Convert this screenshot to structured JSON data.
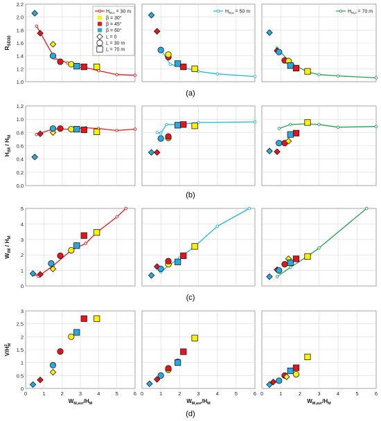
{
  "figure": {
    "captions": [
      "(a)",
      "(b)",
      "(c)",
      "(d)"
    ],
    "column_series": [
      "H<sub>M,o</sub> = 30 m",
      "H<sub>M,o</sub> = 50 m",
      "H<sub>M,o</sub> = 70 m"
    ],
    "legend": {
      "line_label": "H",
      "line_sub": "M,o",
      "line_tail": " = 30 m",
      "col2_line": [
        "H",
        "M,o",
        " = 50 m"
      ],
      "col3_line": [
        "H",
        "M,o",
        " = 70 m"
      ],
      "beta_30": "β = 30°",
      "beta_45": "β = 45°",
      "beta_60": "β = 60°",
      "L0": "L = 0",
      "L30": "L = 30 m",
      "L70": "L = 70 m"
    },
    "colors": {
      "col1": "#e8141b",
      "col2": "#1db5e6",
      "col3": "#22a04a",
      "beta30": "#fff200",
      "beta45": "#e8141b",
      "beta60": "#27aae1",
      "grid": "#d9d9d9"
    }
  },
  "chart_data": [
    {
      "row": "a",
      "type": "scatter",
      "ylabel_main": "R",
      "ylabel_sub": "SD30",
      "ylim": [
        1.0,
        2.2
      ],
      "yticks": [
        "1.0",
        "1.2",
        "1.4",
        "1.6",
        "1.8",
        "2.0",
        "2.2"
      ],
      "xlim": [
        0,
        6
      ],
      "xticks": [],
      "lines": [
        [
          [
            0.6,
            1.86
          ],
          [
            0.8,
            1.76
          ],
          [
            1.6,
            1.36
          ],
          [
            2.3,
            1.29
          ],
          [
            3.0,
            1.24
          ],
          [
            4.0,
            1.17
          ],
          [
            5.0,
            1.11
          ],
          [
            6.0,
            1.1
          ]
        ],
        [
          [
            1.0,
            1.5
          ],
          [
            1.5,
            1.27
          ],
          [
            2.2,
            1.22
          ],
          [
            3.0,
            1.16
          ],
          [
            4.0,
            1.12
          ],
          [
            6.0,
            1.08
          ]
        ],
        [
          [
            0.8,
            1.52
          ],
          [
            1.5,
            1.29
          ],
          [
            2.4,
            1.15
          ],
          [
            3.0,
            1.11
          ],
          [
            4.0,
            1.09
          ],
          [
            6.0,
            1.06
          ]
        ]
      ],
      "points": [
        [
          [
            0.5,
            2.06,
            "d",
            "b60"
          ],
          [
            0.8,
            1.75,
            "d",
            "b45"
          ],
          [
            1.5,
            1.58,
            "d",
            "b30"
          ],
          [
            1.5,
            1.4,
            "c",
            "b60"
          ],
          [
            1.9,
            1.31,
            "c",
            "b45"
          ],
          [
            2.5,
            1.27,
            "c",
            "b30"
          ],
          [
            2.8,
            1.24,
            "s",
            "b60"
          ],
          [
            3.2,
            1.23,
            "s",
            "b45"
          ],
          [
            3.9,
            1.23,
            "s",
            "b30"
          ]
        ],
        [
          [
            0.5,
            2.03,
            "d",
            "b60"
          ],
          [
            0.8,
            1.78,
            "d",
            "b45"
          ],
          [
            1.0,
            1.49,
            "c",
            "b60"
          ],
          [
            1.4,
            1.38,
            "c",
            "b45"
          ],
          [
            1.4,
            1.42,
            "c",
            "b30"
          ],
          [
            1.9,
            1.28,
            "s",
            "b60"
          ],
          [
            2.2,
            1.23,
            "s",
            "b45"
          ],
          [
            2.8,
            1.2,
            "s",
            "b30"
          ]
        ],
        [
          [
            0.4,
            1.76,
            "d",
            "b60"
          ],
          [
            0.8,
            1.48,
            "d",
            "b45"
          ],
          [
            0.9,
            1.46,
            "c",
            "b60"
          ],
          [
            1.2,
            1.33,
            "c",
            "b45"
          ],
          [
            1.4,
            1.32,
            "c",
            "b30"
          ],
          [
            1.5,
            1.25,
            "s",
            "b60"
          ],
          [
            1.8,
            1.21,
            "s",
            "b45"
          ],
          [
            2.4,
            1.16,
            "s",
            "b30"
          ]
        ]
      ]
    },
    {
      "row": "b",
      "type": "scatter",
      "ylabel_main": "H",
      "ylabel_sub": "tM",
      "ylabel_main2": " / H",
      "ylabel_sub2": "M",
      "ylim": [
        0.0,
        1.2
      ],
      "yticks": [
        "0.0",
        "0.2",
        "0.4",
        "0.6",
        "0.8",
        "1.0",
        "1.2"
      ],
      "xlim": [
        0,
        6
      ],
      "xticks": [],
      "lines": [
        [
          [
            0.6,
            0.77
          ],
          [
            0.8,
            0.79
          ],
          [
            1.5,
            0.85
          ],
          [
            2.5,
            0.85
          ],
          [
            3.3,
            0.87
          ],
          [
            4.0,
            0.86
          ],
          [
            5.0,
            0.83
          ],
          [
            6.0,
            0.85
          ]
        ],
        [
          [
            0.8,
            0.8
          ],
          [
            1.0,
            0.79
          ],
          [
            1.3,
            0.92
          ],
          [
            2.0,
            0.92
          ],
          [
            3.0,
            0.95
          ],
          [
            6.0,
            0.96
          ]
        ],
        [
          [
            0.9,
            0.86
          ],
          [
            1.5,
            0.92
          ],
          [
            2.3,
            0.93
          ],
          [
            3.0,
            0.92
          ],
          [
            4.0,
            0.88
          ],
          [
            6.0,
            0.89
          ]
        ]
      ],
      "points": [
        [
          [
            0.5,
            0.43,
            "d",
            "b60"
          ],
          [
            0.8,
            0.78,
            "d",
            "b45"
          ],
          [
            1.5,
            0.8,
            "d",
            "b30"
          ],
          [
            1.5,
            0.86,
            "c",
            "b60"
          ],
          [
            1.9,
            0.86,
            "c",
            "b45"
          ],
          [
            2.5,
            0.85,
            "c",
            "b30"
          ],
          [
            2.8,
            0.85,
            "s",
            "b60"
          ],
          [
            3.2,
            0.84,
            "s",
            "b45"
          ],
          [
            3.9,
            0.81,
            "s",
            "b30"
          ]
        ],
        [
          [
            0.5,
            0.5,
            "d",
            "b60"
          ],
          [
            0.8,
            0.5,
            "d",
            "b45"
          ],
          [
            1.0,
            0.71,
            "c",
            "b60"
          ],
          [
            1.4,
            0.72,
            "c",
            "b30"
          ],
          [
            1.4,
            0.74,
            "c",
            "b45"
          ],
          [
            1.9,
            0.91,
            "s",
            "b60"
          ],
          [
            2.2,
            0.92,
            "s",
            "b45"
          ],
          [
            2.8,
            0.9,
            "s",
            "b30"
          ]
        ],
        [
          [
            0.4,
            0.52,
            "d",
            "b60"
          ],
          [
            0.8,
            0.51,
            "d",
            "b45"
          ],
          [
            0.9,
            0.64,
            "c",
            "b60"
          ],
          [
            1.2,
            0.64,
            "c",
            "b45"
          ],
          [
            1.4,
            0.67,
            "d",
            "b30"
          ],
          [
            1.5,
            0.77,
            "s",
            "b60"
          ],
          [
            1.8,
            0.79,
            "s",
            "b45"
          ],
          [
            2.4,
            0.95,
            "s",
            "b30"
          ]
        ]
      ]
    },
    {
      "row": "c",
      "type": "scatter",
      "ylabel_main": "W",
      "ylabel_sub": "tM",
      "ylabel_main2": " / H",
      "ylabel_sub2": "M",
      "ylim": [
        0,
        5
      ],
      "yticks": [
        "0",
        "1",
        "2",
        "3",
        "4",
        "5"
      ],
      "xlim": [
        0,
        6
      ],
      "xticks": [],
      "lines": [
        [
          [
            0.5,
            0.75
          ],
          [
            0.7,
            0.62
          ],
          [
            1.5,
            1.3
          ],
          [
            2.5,
            2.3
          ],
          [
            3.3,
            2.75
          ],
          [
            3.9,
            3.45
          ],
          [
            5.0,
            4.45
          ],
          [
            5.5,
            5.0
          ]
        ],
        [
          [
            1.0,
            0.9
          ],
          [
            1.5,
            1.4
          ],
          [
            2.0,
            1.8
          ],
          [
            2.8,
            2.55
          ],
          [
            4.0,
            3.85
          ],
          [
            5.7,
            5.0
          ]
        ],
        [
          [
            0.8,
            0.6
          ],
          [
            1.5,
            1.2
          ],
          [
            2.5,
            2.0
          ],
          [
            3.0,
            2.45
          ],
          [
            5.5,
            5.0
          ]
        ]
      ],
      "points": [
        [
          [
            0.4,
            0.8,
            "d",
            "b60"
          ],
          [
            0.8,
            0.75,
            "d",
            "b45"
          ],
          [
            1.5,
            1.1,
            "d",
            "b30"
          ],
          [
            1.4,
            1.45,
            "c",
            "b60"
          ],
          [
            1.9,
            1.95,
            "c",
            "b45"
          ],
          [
            2.5,
            2.3,
            "c",
            "b30"
          ],
          [
            2.8,
            2.6,
            "s",
            "b60"
          ],
          [
            3.2,
            3.25,
            "s",
            "b45"
          ],
          [
            3.9,
            3.45,
            "s",
            "b30"
          ]
        ],
        [
          [
            0.5,
            0.68,
            "d",
            "b60"
          ],
          [
            0.8,
            1.25,
            "d",
            "b45"
          ],
          [
            1.0,
            1.1,
            "c",
            "b60"
          ],
          [
            1.4,
            1.4,
            "c",
            "b30"
          ],
          [
            1.4,
            1.6,
            "c",
            "b45"
          ],
          [
            1.9,
            1.55,
            "s",
            "b60"
          ],
          [
            2.2,
            1.95,
            "s",
            "b45"
          ],
          [
            2.8,
            2.55,
            "s",
            "b30"
          ]
        ],
        [
          [
            0.4,
            0.6,
            "d",
            "b60"
          ],
          [
            0.8,
            1.05,
            "d",
            "b45"
          ],
          [
            0.9,
            1.0,
            "c",
            "b60"
          ],
          [
            1.2,
            1.4,
            "c",
            "b45"
          ],
          [
            1.4,
            1.75,
            "d",
            "b30"
          ],
          [
            1.5,
            1.5,
            "s",
            "b60"
          ],
          [
            1.8,
            1.75,
            "s",
            "b45"
          ],
          [
            2.4,
            1.9,
            "s",
            "b30"
          ]
        ]
      ]
    },
    {
      "row": "d",
      "type": "scatter",
      "ylabel_main": "V/H",
      "ylabel_sub": "",
      "ylabel_sup": "2",
      "ylabel_sub3": "M",
      "ylim": [
        0,
        3.0
      ],
      "yticks": [
        "0",
        "0.5",
        "1",
        "1.5",
        "2",
        "2.5",
        "3"
      ],
      "xlim": [
        0,
        6
      ],
      "xticks": [
        "0",
        "1",
        "2",
        "3",
        "4",
        "5",
        "6"
      ],
      "xlabel_main": "W",
      "xlabel_sub": "M,avr",
      "xlabel_tail": "/H",
      "xlabel_sub2": "M",
      "lines": [
        [],
        [],
        []
      ],
      "points": [
        [
          [
            0.4,
            0.15,
            "d",
            "b60"
          ],
          [
            0.8,
            0.33,
            "d",
            "b45"
          ],
          [
            1.5,
            0.63,
            "d",
            "b30"
          ],
          [
            1.5,
            0.9,
            "c",
            "b60"
          ],
          [
            1.9,
            1.43,
            "c",
            "b45"
          ],
          [
            2.5,
            2.0,
            "c",
            "b30"
          ],
          [
            2.8,
            2.17,
            "s",
            "b60"
          ],
          [
            3.2,
            2.7,
            "s",
            "b45"
          ],
          [
            3.9,
            2.7,
            "s",
            "b30"
          ]
        ],
        [
          [
            0.4,
            0.18,
            "d",
            "b60"
          ],
          [
            0.8,
            0.35,
            "d",
            "b45"
          ],
          [
            1.0,
            0.5,
            "c",
            "b60"
          ],
          [
            1.4,
            0.72,
            "c",
            "b30"
          ],
          [
            1.4,
            0.78,
            "c",
            "b45"
          ],
          [
            1.9,
            1.03,
            "c",
            "b30"
          ],
          [
            1.9,
            1.0,
            "s",
            "b60"
          ],
          [
            2.2,
            1.42,
            "s",
            "b45"
          ],
          [
            2.8,
            1.95,
            "s",
            "b30"
          ]
        ],
        [
          [
            0.4,
            0.15,
            "d",
            "b60"
          ],
          [
            0.6,
            0.25,
            "d",
            "b45"
          ],
          [
            0.9,
            0.3,
            "c",
            "b60"
          ],
          [
            1.2,
            0.5,
            "c",
            "b45"
          ],
          [
            1.3,
            0.45,
            "d",
            "b30"
          ],
          [
            1.5,
            0.68,
            "s",
            "b60"
          ],
          [
            1.8,
            0.8,
            "s",
            "b45"
          ],
          [
            1.8,
            0.55,
            "c",
            "b30"
          ],
          [
            2.4,
            1.22,
            "s",
            "b30"
          ]
        ]
      ]
    }
  ]
}
